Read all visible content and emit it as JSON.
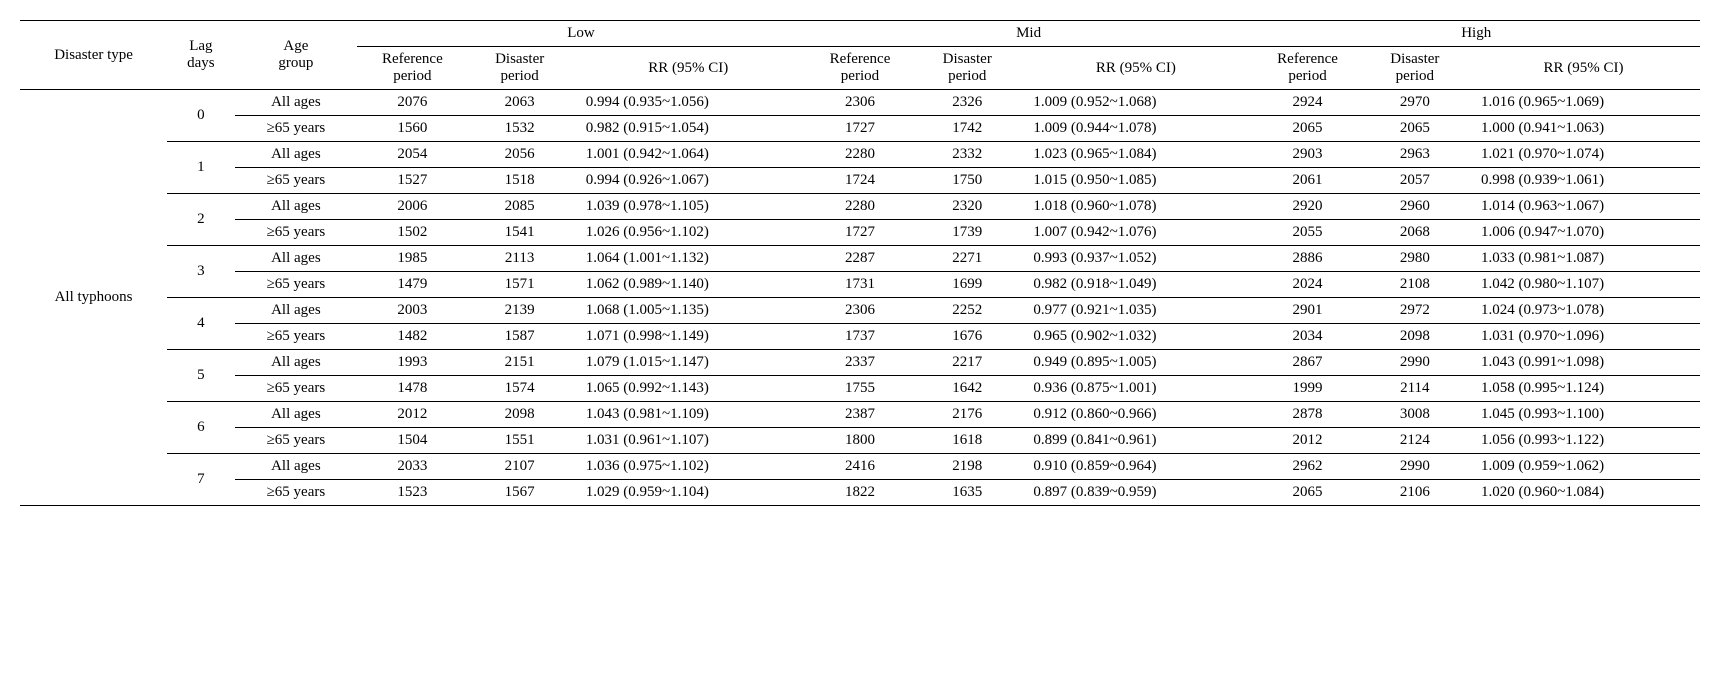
{
  "columns": {
    "disaster_type": "Disaster type",
    "lag_days": "Lag\ndays",
    "age_group": "Age\ngroup",
    "groups": [
      "Low",
      "Mid",
      "High"
    ],
    "sub": {
      "ref": "Reference\nperiod",
      "dis": "Disaster\nperiod",
      "rr": "RR (95% CI)"
    }
  },
  "disaster_type_value": "All typhoons",
  "age_labels": {
    "all": "All ages",
    "old": "≥65 years"
  },
  "rows": [
    {
      "lag": "0",
      "age": "all",
      "low_ref": "2076",
      "low_dis": "2063",
      "low_rr": "0.994 (0.935~1.056)",
      "mid_ref": "2306",
      "mid_dis": "2326",
      "mid_rr": "1.009 (0.952~1.068)",
      "high_ref": "2924",
      "high_dis": "2970",
      "high_rr": "1.016 (0.965~1.069)"
    },
    {
      "lag": "",
      "age": "old",
      "low_ref": "1560",
      "low_dis": "1532",
      "low_rr": "0.982 (0.915~1.054)",
      "mid_ref": "1727",
      "mid_dis": "1742",
      "mid_rr": "1.009 (0.944~1.078)",
      "high_ref": "2065",
      "high_dis": "2065",
      "high_rr": "1.000 (0.941~1.063)"
    },
    {
      "lag": "1",
      "age": "all",
      "low_ref": "2054",
      "low_dis": "2056",
      "low_rr": "1.001 (0.942~1.064)",
      "mid_ref": "2280",
      "mid_dis": "2332",
      "mid_rr": "1.023 (0.965~1.084)",
      "high_ref": "2903",
      "high_dis": "2963",
      "high_rr": "1.021 (0.970~1.074)"
    },
    {
      "lag": "",
      "age": "old",
      "low_ref": "1527",
      "low_dis": "1518",
      "low_rr": "0.994 (0.926~1.067)",
      "mid_ref": "1724",
      "mid_dis": "1750",
      "mid_rr": "1.015 (0.950~1.085)",
      "high_ref": "2061",
      "high_dis": "2057",
      "high_rr": "0.998 (0.939~1.061)"
    },
    {
      "lag": "2",
      "age": "all",
      "low_ref": "2006",
      "low_dis": "2085",
      "low_rr": "1.039 (0.978~1.105)",
      "mid_ref": "2280",
      "mid_dis": "2320",
      "mid_rr": "1.018 (0.960~1.078)",
      "high_ref": "2920",
      "high_dis": "2960",
      "high_rr": "1.014 (0.963~1.067)"
    },
    {
      "lag": "",
      "age": "old",
      "low_ref": "1502",
      "low_dis": "1541",
      "low_rr": "1.026 (0.956~1.102)",
      "mid_ref": "1727",
      "mid_dis": "1739",
      "mid_rr": "1.007 (0.942~1.076)",
      "high_ref": "2055",
      "high_dis": "2068",
      "high_rr": "1.006 (0.947~1.070)"
    },
    {
      "lag": "3",
      "age": "all",
      "low_ref": "1985",
      "low_dis": "2113",
      "low_rr": "1.064 (1.001~1.132)",
      "mid_ref": "2287",
      "mid_dis": "2271",
      "mid_rr": "0.993 (0.937~1.052)",
      "high_ref": "2886",
      "high_dis": "2980",
      "high_rr": "1.033 (0.981~1.087)"
    },
    {
      "lag": "",
      "age": "old",
      "low_ref": "1479",
      "low_dis": "1571",
      "low_rr": "1.062 (0.989~1.140)",
      "mid_ref": "1731",
      "mid_dis": "1699",
      "mid_rr": "0.982 (0.918~1.049)",
      "high_ref": "2024",
      "high_dis": "2108",
      "high_rr": "1.042 (0.980~1.107)"
    },
    {
      "lag": "4",
      "age": "all",
      "low_ref": "2003",
      "low_dis": "2139",
      "low_rr": "1.068 (1.005~1.135)",
      "mid_ref": "2306",
      "mid_dis": "2252",
      "mid_rr": "0.977 (0.921~1.035)",
      "high_ref": "2901",
      "high_dis": "2972",
      "high_rr": "1.024 (0.973~1.078)"
    },
    {
      "lag": "",
      "age": "old",
      "low_ref": "1482",
      "low_dis": "1587",
      "low_rr": "1.071 (0.998~1.149)",
      "mid_ref": "1737",
      "mid_dis": "1676",
      "mid_rr": "0.965 (0.902~1.032)",
      "high_ref": "2034",
      "high_dis": "2098",
      "high_rr": "1.031 (0.970~1.096)"
    },
    {
      "lag": "5",
      "age": "all",
      "low_ref": "1993",
      "low_dis": "2151",
      "low_rr": "1.079 (1.015~1.147)",
      "mid_ref": "2337",
      "mid_dis": "2217",
      "mid_rr": "0.949 (0.895~1.005)",
      "high_ref": "2867",
      "high_dis": "2990",
      "high_rr": "1.043 (0.991~1.098)"
    },
    {
      "lag": "",
      "age": "old",
      "low_ref": "1478",
      "low_dis": "1574",
      "low_rr": "1.065 (0.992~1.143)",
      "mid_ref": "1755",
      "mid_dis": "1642",
      "mid_rr": "0.936 (0.875~1.001)",
      "high_ref": "1999",
      "high_dis": "2114",
      "high_rr": "1.058 (0.995~1.124)"
    },
    {
      "lag": "6",
      "age": "all",
      "low_ref": "2012",
      "low_dis": "2098",
      "low_rr": "1.043 (0.981~1.109)",
      "mid_ref": "2387",
      "mid_dis": "2176",
      "mid_rr": "0.912 (0.860~0.966)",
      "high_ref": "2878",
      "high_dis": "3008",
      "high_rr": "1.045 (0.993~1.100)"
    },
    {
      "lag": "",
      "age": "old",
      "low_ref": "1504",
      "low_dis": "1551",
      "low_rr": "1.031 (0.961~1.107)",
      "mid_ref": "1800",
      "mid_dis": "1618",
      "mid_rr": "0.899 (0.841~0.961)",
      "high_ref": "2012",
      "high_dis": "2124",
      "high_rr": "1.056 (0.993~1.122)"
    },
    {
      "lag": "7",
      "age": "all",
      "low_ref": "2033",
      "low_dis": "2107",
      "low_rr": "1.036 (0.975~1.102)",
      "mid_ref": "2416",
      "mid_dis": "2198",
      "mid_rr": "0.910 (0.859~0.964)",
      "high_ref": "2962",
      "high_dis": "2990",
      "high_rr": "1.009 (0.959~1.062)"
    },
    {
      "lag": "",
      "age": "old",
      "low_ref": "1523",
      "low_dis": "1567",
      "low_rr": "1.029 (0.959~1.104)",
      "mid_ref": "1822",
      "mid_dis": "1635",
      "mid_rr": "0.897 (0.839~0.959)",
      "high_ref": "2065",
      "high_dis": "2106",
      "high_rr": "1.020 (0.960~1.084)"
    }
  ]
}
